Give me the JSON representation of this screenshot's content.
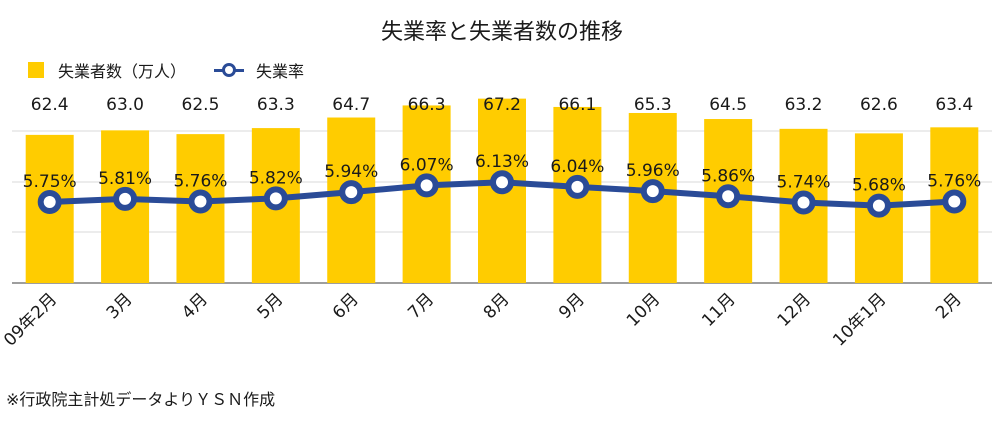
{
  "chart_data": {
    "type": "bar+line",
    "title": "失業率と失業者数の推移",
    "categories": [
      "09年2月",
      "3月",
      "4月",
      "5月",
      "6月",
      "7月",
      "8月",
      "9月",
      "10月",
      "11月",
      "12月",
      "10年1月",
      "2月"
    ],
    "series": [
      {
        "name": "失業者数（万人）",
        "type": "bar",
        "color": "#ffcc00",
        "values": [
          62.4,
          63.0,
          62.5,
          63.3,
          64.7,
          66.3,
          67.2,
          66.1,
          65.3,
          64.5,
          63.2,
          62.6,
          63.4
        ],
        "labels": [
          "62.4",
          "63.0",
          "62.5",
          "63.3",
          "64.7",
          "66.3",
          "67.2",
          "66.1",
          "65.3",
          "64.5",
          "63.2",
          "62.6",
          "63.4"
        ]
      },
      {
        "name": "失業率",
        "type": "line",
        "color": "#2a4b97",
        "values": [
          5.75,
          5.81,
          5.76,
          5.82,
          5.94,
          6.07,
          6.13,
          6.04,
          5.96,
          5.86,
          5.74,
          5.68,
          5.76
        ],
        "labels": [
          "5.75%",
          "5.81%",
          "5.76%",
          "5.82%",
          "5.94%",
          "6.07%",
          "6.13%",
          "6.04%",
          "5.96%",
          "5.86%",
          "5.74%",
          "5.68%",
          "5.76%"
        ]
      }
    ],
    "grid": true,
    "legend_position": "top-left"
  },
  "source_note": "※行政院主計処データよりＹＳＮ作成"
}
